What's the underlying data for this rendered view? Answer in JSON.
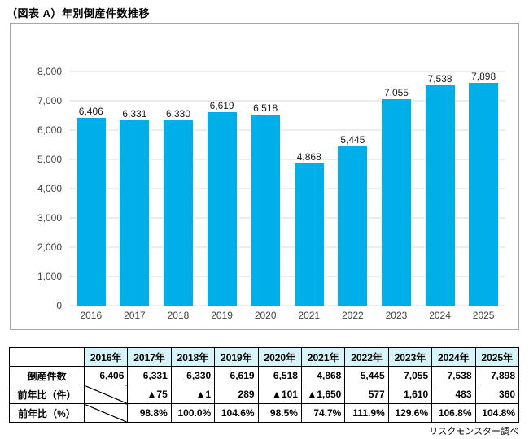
{
  "page": {
    "title": "（図表 A）年別倒産件数推移",
    "source_note": "リスクモンスター調べ"
  },
  "colors": {
    "bar": "#00AEE8",
    "grid": "#D9D9D9",
    "chart_border": "#A6A6A6",
    "table_header_bg": "#D6F5FB",
    "table_border": "#000000",
    "tick": "#404040"
  },
  "chart_data": {
    "type": "bar",
    "title": "年別倒産件数推移",
    "categories": [
      "2016",
      "2017",
      "2018",
      "2019",
      "2020",
      "2021",
      "2022",
      "2023",
      "2024",
      "2025"
    ],
    "values": [
      6406,
      6331,
      6330,
      6619,
      6518,
      4868,
      5445,
      7055,
      7538,
      7898
    ],
    "labels": [
      "6,406",
      "6,331",
      "6,330",
      "6,619",
      "6,518",
      "4,868",
      "5,445",
      "7,055",
      "7,538",
      "7,898"
    ],
    "xlabel": "",
    "ylabel": "",
    "ylim": [
      0,
      8000
    ],
    "ytick_step": 1000,
    "yticks": [
      "0",
      "1,000",
      "2,000",
      "3,000",
      "4,000",
      "5,000",
      "6,000",
      "7,000",
      "8,000"
    ],
    "grid": true,
    "legend": false
  },
  "table": {
    "corner_label": "",
    "col_headers": [
      "2016年",
      "2017年",
      "2018年",
      "2019年",
      "2020年",
      "2021年",
      "2022年",
      "2023年",
      "2024年",
      "2025年"
    ],
    "rows": [
      {
        "label": "倒産件数",
        "cells": [
          "6,406",
          "6,331",
          "6,330",
          "6,619",
          "6,518",
          "4,868",
          "5,445",
          "7,055",
          "7,538",
          "7,898"
        ],
        "diagonal": []
      },
      {
        "label": "前年比（件）",
        "cells": [
          "",
          "▲75",
          "▲1",
          "289",
          "▲101",
          "▲1,650",
          "577",
          "1,610",
          "483",
          "360"
        ],
        "diagonal": [
          0
        ]
      },
      {
        "label": "前年比（%）",
        "cells": [
          "",
          "98.8%",
          "100.0%",
          "104.6%",
          "98.5%",
          "74.7%",
          "111.9%",
          "129.6%",
          "106.8%",
          "104.8%"
        ],
        "diagonal": [
          0
        ]
      }
    ]
  }
}
